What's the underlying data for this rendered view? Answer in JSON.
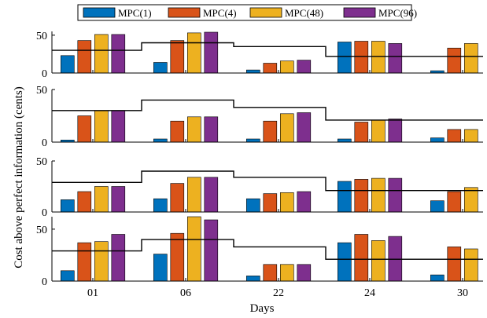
{
  "chart_data": {
    "type": "bar",
    "categories": [
      "01",
      "06",
      "22",
      "24",
      "30"
    ],
    "xlabel": "Days",
    "ylabel": "Cost above perfect information (cents)",
    "colors": [
      "#0072BD",
      "#D95319",
      "#EDB120",
      "#7E2F8E"
    ],
    "legend": {
      "placement": "top-center",
      "entries": [
        "MPC(1)",
        "MPC(4)",
        "MPC(48)",
        "MPC(96)"
      ]
    },
    "grid": false,
    "panels": [
      {
        "ylim": [
          0,
          55
        ],
        "yticks": [
          0,
          50
        ],
        "series": [
          {
            "name": "MPC(1)",
            "values": [
              23,
              14,
              4,
              41,
              3
            ]
          },
          {
            "name": "MPC(4)",
            "values": [
              43,
              43,
              13,
              42,
              33
            ]
          },
          {
            "name": "MPC(48)",
            "values": [
              51,
              53,
              16,
              42,
              39
            ]
          },
          {
            "name": "MPC(96)",
            "values": [
              51,
              54,
              17,
              39,
              0
            ]
          }
        ],
        "step_line": [
          30,
          40,
          35,
          22,
          22
        ]
      },
      {
        "ylim": [
          0,
          50
        ],
        "yticks": [
          0,
          50
        ],
        "series": [
          {
            "name": "MPC(1)",
            "values": [
              2,
              3,
              3,
              3,
              4
            ]
          },
          {
            "name": "MPC(4)",
            "values": [
              25,
              20,
              20,
              19,
              12
            ]
          },
          {
            "name": "MPC(48)",
            "values": [
              30,
              24,
              27,
              21,
              12
            ]
          },
          {
            "name": "MPC(96)",
            "values": [
              30,
              24,
              28,
              22,
              0
            ]
          }
        ],
        "step_line": [
          30,
          40,
          33,
          21,
          21
        ]
      },
      {
        "ylim": [
          0,
          50
        ],
        "yticks": [
          0,
          50
        ],
        "series": [
          {
            "name": "MPC(1)",
            "values": [
              12,
              13,
              13,
              30,
              11
            ]
          },
          {
            "name": "MPC(4)",
            "values": [
              20,
              28,
              18,
              32,
              20
            ]
          },
          {
            "name": "MPC(48)",
            "values": [
              25,
              34,
              19,
              33,
              24
            ]
          },
          {
            "name": "MPC(96)",
            "values": [
              25,
              34,
              20,
              33,
              0
            ]
          }
        ],
        "step_line": [
          29,
          40,
          34,
          21,
          21
        ]
      },
      {
        "ylim": [
          0,
          62
        ],
        "yticks": [
          0,
          50
        ],
        "series": [
          {
            "name": "MPC(1)",
            "values": [
              10,
              26,
              5,
              37,
              6
            ]
          },
          {
            "name": "MPC(4)",
            "values": [
              37,
              46,
              16,
              45,
              33
            ]
          },
          {
            "name": "MPC(48)",
            "values": [
              38,
              62,
              16,
              39,
              31
            ]
          },
          {
            "name": "MPC(96)",
            "values": [
              45,
              59,
              16,
              43,
              0
            ]
          }
        ],
        "step_line": [
          29,
          40,
          33,
          21,
          21
        ]
      }
    ]
  }
}
